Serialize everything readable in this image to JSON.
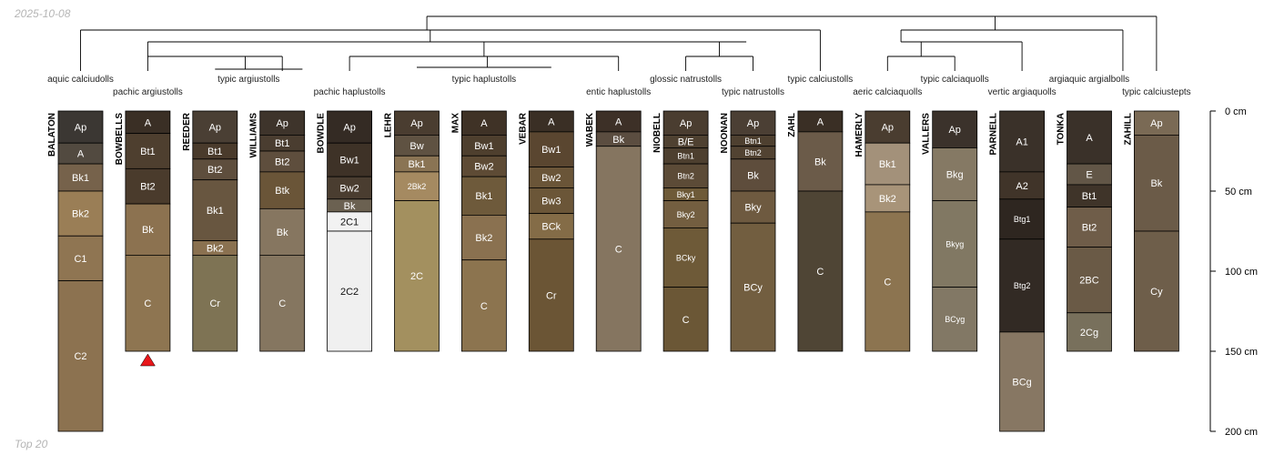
{
  "date_label": "2025-10-08",
  "footer_label": "Top 20",
  "colors": {
    "marker": "#e8171b",
    "line": "#000000"
  },
  "chart_data": {
    "type": "soil-profile-sketch",
    "title": "",
    "depth_unit": "cm",
    "depth_max": 200,
    "depth_ticks": [
      0,
      50,
      100,
      150,
      200
    ],
    "depth_tick_labels": [
      "0 cm",
      "50 cm",
      "100 cm",
      "150 cm",
      "200 cm"
    ],
    "taxa": [
      "aquic calciudolls",
      "pachic argiustolls",
      "typic argiustolls",
      "pachic haplustolls",
      "typic haplustolls",
      "entic haplustolls",
      "glossic natrustolls",
      "typic natrustolls",
      "typic calciustolls",
      "aeric calciaquolls",
      "typic calciaquolls",
      "vertic argiaquolls",
      "argiaquic argialbolls",
      "typic calciustepts"
    ],
    "profiles": [
      {
        "name": "BALATON",
        "taxon": "aquic calciudolls",
        "marker": false,
        "horizons": [
          {
            "name": "Ap",
            "top": 0,
            "bottom": 20,
            "color": "#3b3733"
          },
          {
            "name": "A",
            "top": 20,
            "bottom": 33,
            "color": "#524a40"
          },
          {
            "name": "Bk1",
            "top": 33,
            "bottom": 50,
            "color": "#76624b"
          },
          {
            "name": "Bk2",
            "top": 50,
            "bottom": 78,
            "color": "#9a7e56"
          },
          {
            "name": "C1",
            "top": 78,
            "bottom": 106,
            "color": "#8f7552"
          },
          {
            "name": "C2",
            "top": 106,
            "bottom": 200,
            "color": "#8c7250"
          }
        ]
      },
      {
        "name": "BOWBELLS",
        "taxon": "pachic argiustolls",
        "marker": true,
        "horizons": [
          {
            "name": "A",
            "top": 0,
            "bottom": 14,
            "color": "#3a2f25"
          },
          {
            "name": "Bt1",
            "top": 14,
            "bottom": 36,
            "color": "#4e3f2f"
          },
          {
            "name": "Bt2",
            "top": 36,
            "bottom": 58,
            "color": "#4a3b2c"
          },
          {
            "name": "Bk",
            "top": 58,
            "bottom": 90,
            "color": "#8c7250"
          },
          {
            "name": "C",
            "top": 90,
            "bottom": 150,
            "color": "#8e7551"
          }
        ]
      },
      {
        "name": "REEDER",
        "taxon": "typic argiustolls",
        "marker": false,
        "horizons": [
          {
            "name": "Ap",
            "top": 0,
            "bottom": 20,
            "color": "#4a3f34"
          },
          {
            "name": "Bt1",
            "top": 20,
            "bottom": 30,
            "color": "#4a3b2c"
          },
          {
            "name": "Bt2",
            "top": 30,
            "bottom": 43,
            "color": "#5e4e3d"
          },
          {
            "name": "Bk1",
            "top": 43,
            "bottom": 81,
            "color": "#685640"
          },
          {
            "name": "Bk2",
            "top": 81,
            "bottom": 90,
            "color": "#8a7150"
          },
          {
            "name": "Cr",
            "top": 90,
            "bottom": 150,
            "color": "#7e7354"
          }
        ]
      },
      {
        "name": "WILLIAMS",
        "taxon": "typic argiustolls",
        "marker": false,
        "horizons": [
          {
            "name": "Ap",
            "top": 0,
            "bottom": 15,
            "color": "#3e342b"
          },
          {
            "name": "Bt1",
            "top": 15,
            "bottom": 25,
            "color": "#4a3d30"
          },
          {
            "name": "Bt2",
            "top": 25,
            "bottom": 38,
            "color": "#5e4e3d"
          },
          {
            "name": "Btk",
            "top": 38,
            "bottom": 61,
            "color": "#6a5538"
          },
          {
            "name": "Bk",
            "top": 61,
            "bottom": 90,
            "color": "#867660"
          },
          {
            "name": "C",
            "top": 90,
            "bottom": 150,
            "color": "#857660"
          }
        ]
      },
      {
        "name": "BOWDLE",
        "taxon": "pachic haplustolls",
        "marker": false,
        "horizons": [
          {
            "name": "Ap",
            "top": 0,
            "bottom": 20,
            "color": "#342b24"
          },
          {
            "name": "Bw1",
            "top": 20,
            "bottom": 41,
            "color": "#3e3227"
          },
          {
            "name": "Bw2",
            "top": 41,
            "bottom": 55,
            "color": "#4a3d30"
          },
          {
            "name": "Bk",
            "top": 55,
            "bottom": 63,
            "color": "#6b6151"
          },
          {
            "name": "2C1",
            "top": 63,
            "bottom": 75,
            "color": "#f2f2f2"
          },
          {
            "name": "2C2",
            "top": 75,
            "bottom": 150,
            "color": "#f0f0f0"
          }
        ]
      },
      {
        "name": "LEHR",
        "taxon": "typic haplustolls",
        "marker": false,
        "horizons": [
          {
            "name": "Ap",
            "top": 0,
            "bottom": 15,
            "color": "#4a3d30"
          },
          {
            "name": "Bw",
            "top": 15,
            "bottom": 28,
            "color": "#5f5242"
          },
          {
            "name": "Bk1",
            "top": 28,
            "bottom": 38,
            "color": "#8a7454"
          },
          {
            "name": "2Bk2",
            "top": 38,
            "bottom": 56,
            "color": "#a58a61"
          },
          {
            "name": "2C",
            "top": 56,
            "bottom": 150,
            "color": "#a3905f"
          }
        ]
      },
      {
        "name": "MAX",
        "taxon": "typic haplustolls",
        "marker": false,
        "horizons": [
          {
            "name": "A",
            "top": 0,
            "bottom": 15,
            "color": "#3f3226"
          },
          {
            "name": "Bw1",
            "top": 15,
            "bottom": 28,
            "color": "#4e3f2e"
          },
          {
            "name": "Bw2",
            "top": 28,
            "bottom": 41,
            "color": "#5e4b35"
          },
          {
            "name": "Bk1",
            "top": 41,
            "bottom": 65,
            "color": "#6e5a3b"
          },
          {
            "name": "Bk2",
            "top": 65,
            "bottom": 93,
            "color": "#8a7150"
          },
          {
            "name": "C",
            "top": 93,
            "bottom": 150,
            "color": "#8c744f"
          }
        ]
      },
      {
        "name": "VEBAR",
        "taxon": "typic haplustolls",
        "marker": false,
        "horizons": [
          {
            "name": "A",
            "top": 0,
            "bottom": 13,
            "color": "#3a2f25"
          },
          {
            "name": "Bw1",
            "top": 13,
            "bottom": 35,
            "color": "#5a4630"
          },
          {
            "name": "Bw2",
            "top": 35,
            "bottom": 48,
            "color": "#6a5538"
          },
          {
            "name": "Bw3",
            "top": 48,
            "bottom": 64,
            "color": "#6b5638"
          },
          {
            "name": "BCk",
            "top": 64,
            "bottom": 80,
            "color": "#846c47"
          },
          {
            "name": "Cr",
            "top": 80,
            "bottom": 150,
            "color": "#6b5535"
          }
        ]
      },
      {
        "name": "WABEK",
        "taxon": "entic haplustolls",
        "marker": false,
        "horizons": [
          {
            "name": "A",
            "top": 0,
            "bottom": 13,
            "color": "#3d3027"
          },
          {
            "name": "Bk",
            "top": 13,
            "bottom": 22,
            "color": "#5b4d40"
          },
          {
            "name": "C",
            "top": 22,
            "bottom": 150,
            "color": "#857560"
          }
        ]
      },
      {
        "name": "NIOBELL",
        "taxon": "glossic natrustolls",
        "marker": false,
        "horizons": [
          {
            "name": "Ap",
            "top": 0,
            "bottom": 15,
            "color": "#4a3d30"
          },
          {
            "name": "B/E",
            "top": 15,
            "bottom": 23,
            "color": "#4f4131"
          },
          {
            "name": "Btn1",
            "top": 23,
            "bottom": 33,
            "color": "#4d3f2f"
          },
          {
            "name": "Btn2",
            "top": 33,
            "bottom": 48,
            "color": "#5c4b37"
          },
          {
            "name": "Bky1",
            "top": 48,
            "bottom": 56,
            "color": "#6e5a38"
          },
          {
            "name": "Bky2",
            "top": 56,
            "bottom": 73,
            "color": "#735e40"
          },
          {
            "name": "BCky",
            "top": 73,
            "bottom": 110,
            "color": "#6e5a38"
          },
          {
            "name": "C",
            "top": 110,
            "bottom": 150,
            "color": "#6b5736"
          }
        ]
      },
      {
        "name": "NOONAN",
        "taxon": "typic natrustolls",
        "marker": false,
        "horizons": [
          {
            "name": "Ap",
            "top": 0,
            "bottom": 15,
            "color": "#4b3f34"
          },
          {
            "name": "Btn1",
            "top": 15,
            "bottom": 22,
            "color": "#4e4030"
          },
          {
            "name": "Btn2",
            "top": 22,
            "bottom": 30,
            "color": "#524332"
          },
          {
            "name": "Bk",
            "top": 30,
            "bottom": 50,
            "color": "#5e4d3c"
          },
          {
            "name": "Bky",
            "top": 50,
            "bottom": 70,
            "color": "#6e5a40"
          },
          {
            "name": "BCy",
            "top": 70,
            "bottom": 150,
            "color": "#725e40"
          }
        ]
      },
      {
        "name": "ZAHL",
        "taxon": "typic calciustolls",
        "marker": false,
        "horizons": [
          {
            "name": "A",
            "top": 0,
            "bottom": 13,
            "color": "#3a2f25"
          },
          {
            "name": "Bk",
            "top": 13,
            "bottom": 50,
            "color": "#6b5b49"
          },
          {
            "name": "C",
            "top": 50,
            "bottom": 150,
            "color": "#4f4535"
          }
        ]
      },
      {
        "name": "HAMERLY",
        "taxon": "aeric calciaquolls",
        "marker": false,
        "horizons": [
          {
            "name": "Ap",
            "top": 0,
            "bottom": 20,
            "color": "#4a3d30"
          },
          {
            "name": "Bk1",
            "top": 20,
            "bottom": 46,
            "color": "#a3917a"
          },
          {
            "name": "Bk2",
            "top": 46,
            "bottom": 63,
            "color": "#a89479"
          },
          {
            "name": "C",
            "top": 63,
            "bottom": 150,
            "color": "#8c7450"
          }
        ]
      },
      {
        "name": "VALLERS",
        "taxon": "typic calciaquolls",
        "marker": false,
        "horizons": [
          {
            "name": "Ap",
            "top": 0,
            "bottom": 23,
            "color": "#3b322b"
          },
          {
            "name": "Bkg",
            "top": 23,
            "bottom": 56,
            "color": "#857964"
          },
          {
            "name": "Bkyg",
            "top": 56,
            "bottom": 110,
            "color": "#817863"
          },
          {
            "name": "BCyg",
            "top": 110,
            "bottom": 150,
            "color": "#827865"
          }
        ]
      },
      {
        "name": "PARNELL",
        "taxon": "vertic argiaquolls",
        "marker": false,
        "horizons": [
          {
            "name": "A1",
            "top": 0,
            "bottom": 38,
            "color": "#3a3129"
          },
          {
            "name": "A2",
            "top": 38,
            "bottom": 55,
            "color": "#403429"
          },
          {
            "name": "Btg1",
            "top": 55,
            "bottom": 80,
            "color": "#2e2620"
          },
          {
            "name": "Btg2",
            "top": 80,
            "bottom": 138,
            "color": "#322a24"
          },
          {
            "name": "BCg",
            "top": 138,
            "bottom": 200,
            "color": "#877763"
          }
        ]
      },
      {
        "name": "TONKA",
        "taxon": "argiaquic argialbolls",
        "marker": false,
        "horizons": [
          {
            "name": "A",
            "top": 0,
            "bottom": 33,
            "color": "#3a3129"
          },
          {
            "name": "E",
            "top": 33,
            "bottom": 46,
            "color": "#625647"
          },
          {
            "name": "Bt1",
            "top": 46,
            "bottom": 60,
            "color": "#3f3429"
          },
          {
            "name": "Bt2",
            "top": 60,
            "bottom": 85,
            "color": "#6f5d49"
          },
          {
            "name": "2BC",
            "top": 85,
            "bottom": 126,
            "color": "#6a5a46"
          },
          {
            "name": "2Cg",
            "top": 126,
            "bottom": 150,
            "color": "#78705c"
          }
        ]
      },
      {
        "name": "ZAHILL",
        "taxon": "typic calciustepts",
        "marker": false,
        "horizons": [
          {
            "name": "Ap",
            "top": 0,
            "bottom": 15,
            "color": "#7a6a55"
          },
          {
            "name": "Bk",
            "top": 15,
            "bottom": 75,
            "color": "#6b5b48"
          },
          {
            "name": "Cy",
            "top": 75,
            "bottom": 150,
            "color": "#6e5e4a"
          }
        ]
      }
    ]
  }
}
